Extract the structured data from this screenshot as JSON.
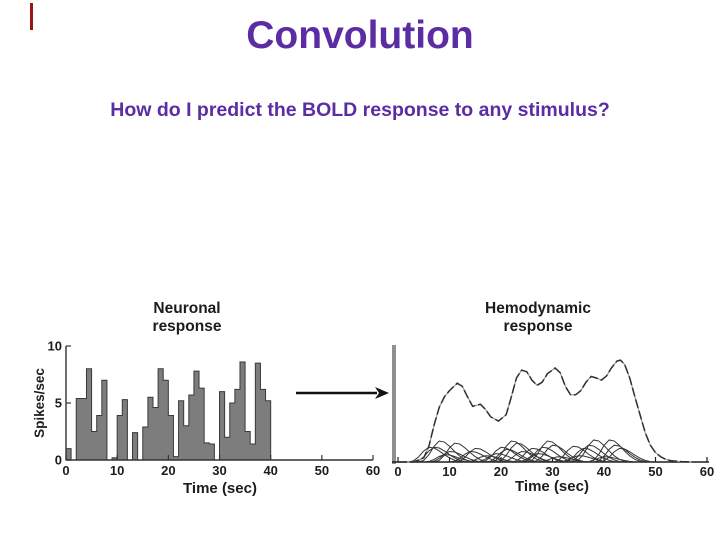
{
  "slide": {
    "title": "Convolution",
    "subtitle": "How do I predict the BOLD response to any stimulus?",
    "title_color": "#5b2ca4",
    "background_color": "#ffffff",
    "red_mark_color": "#9c1313"
  },
  "arrow": {
    "direction": "right",
    "color": "#111111"
  },
  "chart_data": [
    {
      "id": "neuronal",
      "type": "bar",
      "title_lines": [
        "Neuronal",
        "response"
      ],
      "ylabel": "Spikes/sec",
      "xlabel": "Time (sec)",
      "xlim": [
        0,
        60
      ],
      "ylim": [
        0,
        10
      ],
      "x_ticks": [
        0,
        10,
        20,
        30,
        40,
        50,
        60
      ],
      "y_ticks": [
        0,
        5,
        10
      ],
      "bin_width_sec": 1,
      "values": [
        1.0,
        0,
        5.4,
        5.4,
        8.0,
        2.5,
        3.9,
        7.0,
        0,
        0.2,
        3.9,
        5.3,
        0,
        2.4,
        0,
        2.9,
        5.5,
        4.6,
        8.0,
        7.0,
        3.9,
        0.3,
        5.2,
        3.0,
        5.7,
        7.8,
        6.3,
        1.5,
        1.4,
        0,
        6.0,
        2.0,
        5.0,
        6.2,
        8.6,
        2.5,
        1.4,
        8.5,
        6.2,
        5.2
      ],
      "bar_fill": "#7d7d7d",
      "bar_stroke": "#3a3a3a",
      "axis_color": "#333333",
      "text_color": "#1c1c1c",
      "grid": false
    },
    {
      "id": "hemodynamic",
      "type": "line",
      "title_lines": [
        "Hemodynamic",
        "response"
      ],
      "xlabel": "Time (sec)",
      "xlim": [
        0,
        60
      ],
      "x_ticks": [
        0,
        10,
        20,
        30,
        40,
        50,
        60
      ],
      "y_ticks": [],
      "envelope": [
        [
          0,
          0
        ],
        [
          3,
          0
        ],
        [
          5,
          0.04
        ],
        [
          6,
          0.15
        ],
        [
          7,
          0.35
        ],
        [
          8,
          0.52
        ],
        [
          9,
          0.62
        ],
        [
          10,
          0.68
        ],
        [
          11.5,
          0.75
        ],
        [
          12.5,
          0.72
        ],
        [
          13.5,
          0.62
        ],
        [
          14.5,
          0.53
        ],
        [
          16,
          0.55
        ],
        [
          17,
          0.5
        ],
        [
          18,
          0.43
        ],
        [
          19.5,
          0.39
        ],
        [
          21,
          0.45
        ],
        [
          22,
          0.62
        ],
        [
          23,
          0.8
        ],
        [
          24,
          0.875
        ],
        [
          25,
          0.86
        ],
        [
          26,
          0.78
        ],
        [
          27,
          0.73
        ],
        [
          28,
          0.76
        ],
        [
          29,
          0.84
        ],
        [
          30.5,
          0.895
        ],
        [
          31.5,
          0.85
        ],
        [
          32.5,
          0.72
        ],
        [
          33.5,
          0.64
        ],
        [
          34.5,
          0.64
        ],
        [
          35.5,
          0.68
        ],
        [
          36.5,
          0.76
        ],
        [
          37.5,
          0.815
        ],
        [
          38.5,
          0.8
        ],
        [
          39.5,
          0.78
        ],
        [
          40.5,
          0.82
        ],
        [
          41.5,
          0.9
        ],
        [
          42.5,
          0.96
        ],
        [
          43.2,
          0.97
        ],
        [
          44,
          0.93
        ],
        [
          45,
          0.8
        ],
        [
          46,
          0.62
        ],
        [
          47,
          0.45
        ],
        [
          48,
          0.28
        ],
        [
          49,
          0.16
        ],
        [
          50,
          0.09
        ],
        [
          51,
          0.05
        ],
        [
          52,
          0.025
        ],
        [
          53,
          0.012
        ],
        [
          55,
          0.004
        ],
        [
          57,
          0
        ]
      ],
      "hrf_shape": [
        [
          0,
          0
        ],
        [
          1,
          0.08
        ],
        [
          2,
          0.35
        ],
        [
          3,
          0.75
        ],
        [
          4,
          1
        ],
        [
          5,
          0.95
        ],
        [
          6,
          0.75
        ],
        [
          7,
          0.5
        ],
        [
          8,
          0.28
        ],
        [
          9,
          0.12
        ],
        [
          10,
          0.03
        ],
        [
          11,
          0
        ]
      ],
      "components": [
        {
          "onset": 2,
          "amp": 0.14
        },
        {
          "onset": 3,
          "amp": 0.14
        },
        {
          "onset": 4,
          "amp": 0.2
        },
        {
          "onset": 5,
          "amp": 0.07
        },
        {
          "onset": 6,
          "amp": 0.1
        },
        {
          "onset": 7,
          "amp": 0.18
        },
        {
          "onset": 10,
          "amp": 0.1
        },
        {
          "onset": 11,
          "amp": 0.13
        },
        {
          "onset": 13,
          "amp": 0.06
        },
        {
          "onset": 15,
          "amp": 0.08
        },
        {
          "onset": 16,
          "amp": 0.14
        },
        {
          "onset": 17,
          "amp": 0.12
        },
        {
          "onset": 18,
          "amp": 0.2
        },
        {
          "onset": 19,
          "amp": 0.18
        },
        {
          "onset": 20,
          "amp": 0.1
        },
        {
          "onset": 22,
          "amp": 0.13
        },
        {
          "onset": 23,
          "amp": 0.08
        },
        {
          "onset": 24,
          "amp": 0.14
        },
        {
          "onset": 25,
          "amp": 0.2
        },
        {
          "onset": 26,
          "amp": 0.16
        },
        {
          "onset": 27,
          "amp": 0.05
        },
        {
          "onset": 30,
          "amp": 0.15
        },
        {
          "onset": 31,
          "amp": 0.06
        },
        {
          "onset": 32,
          "amp": 0.13
        },
        {
          "onset": 33,
          "amp": 0.16
        },
        {
          "onset": 34,
          "amp": 0.21
        },
        {
          "onset": 36,
          "amp": 0.05
        },
        {
          "onset": 37,
          "amp": 0.21
        },
        {
          "onset": 38,
          "amp": 0.16
        },
        {
          "onset": 39,
          "amp": 0.13
        }
      ],
      "line_color": "#2f2f2f",
      "component_color": "#333333",
      "y_axis_color": "#8f8f8f",
      "x_axis_color": "#1f1f1f",
      "text_color": "#1c1c1c",
      "grid": false
    }
  ]
}
